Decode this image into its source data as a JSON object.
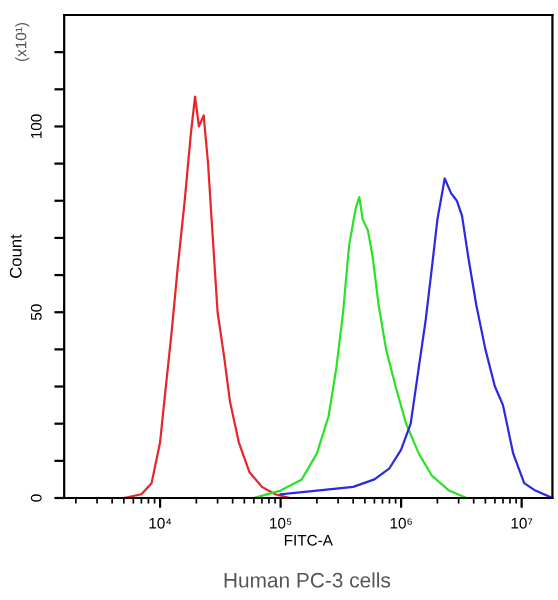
{
  "chart_data": {
    "type": "line",
    "xlabel": "FITC-A",
    "ylabel": "Count",
    "annotations": [
      "(x10¹)",
      "Human PC-3 cells"
    ],
    "log": "x",
    "xlim": [
      1600,
      18000000
    ],
    "ylim": [
      0,
      130
    ],
    "xticks": [
      {
        "value": 10000,
        "label": "10⁴"
      },
      {
        "value": 100000,
        "label": "10⁵"
      },
      {
        "value": 1000000,
        "label": "10⁶"
      },
      {
        "value": 10000000,
        "label": "10⁷"
      }
    ],
    "yticks": [
      0,
      {
        "value": 10,
        "label": null
      },
      {
        "value": 20,
        "label": null
      },
      {
        "value": 30,
        "label": null
      },
      {
        "value": 40,
        "label": null
      },
      50,
      {
        "value": 60,
        "label": null
      },
      {
        "value": 70,
        "label": null
      },
      {
        "value": 80,
        "label": null
      },
      {
        "value": 90,
        "label": null
      },
      100,
      {
        "value": 110,
        "label": null
      },
      {
        "value": 120,
        "label": null
      }
    ],
    "grid": false,
    "marker": "none",
    "line_style": "solid",
    "series": [
      {
        "color": "#e8262a",
        "x": [
          5000,
          7000,
          8500,
          10000,
          11000,
          12500,
          14000,
          16000,
          18000,
          19500,
          21000,
          23000,
          25000,
          28000,
          30000,
          34000,
          38000,
          45000,
          55000,
          70000,
          90000,
          120000
        ],
        "values": [
          0,
          1,
          4,
          15,
          28,
          45,
          62,
          80,
          98,
          108,
          100,
          103,
          90,
          65,
          50,
          38,
          26,
          15,
          7,
          3,
          1,
          0
        ]
      },
      {
        "color": "#2de02a",
        "x": [
          20000,
          60000,
          100000,
          150000,
          200000,
          250000,
          290000,
          330000,
          370000,
          420000,
          450000,
          480000,
          530000,
          580000,
          650000,
          750000,
          900000,
          1100000,
          1400000,
          1800000,
          2500000,
          3500000
        ],
        "values": [
          0,
          0,
          2,
          5,
          12,
          22,
          35,
          50,
          68,
          78,
          81,
          75,
          72,
          65,
          52,
          40,
          30,
          20,
          12,
          6,
          2,
          0
        ]
      },
      {
        "color": "#2a2ae0",
        "x": [
          100000,
          200000,
          400000,
          600000,
          800000,
          1000000,
          1200000,
          1400000,
          1600000,
          1800000,
          2000000,
          2300000,
          2600000,
          2900000,
          3200000,
          3600000,
          4200000,
          5000000,
          6000000,
          7000000,
          8500000,
          10500000,
          13000000,
          18000000
        ],
        "values": [
          1,
          2,
          3,
          5,
          8,
          13,
          20,
          35,
          48,
          62,
          75,
          86,
          82,
          80,
          76,
          65,
          52,
          40,
          30,
          25,
          12,
          4,
          2,
          0
        ]
      }
    ]
  }
}
